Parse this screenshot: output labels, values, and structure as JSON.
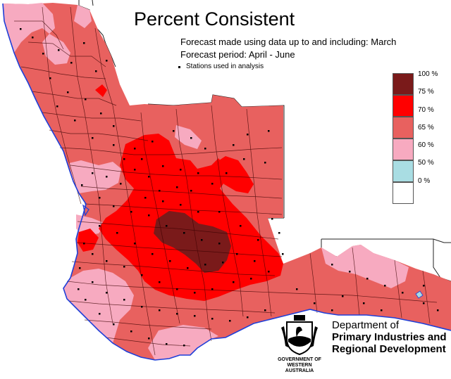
{
  "title": "Percent Consistent",
  "subtitle_made": "Forecast made using data up to and including: March",
  "subtitle_period": "Forecast period: April - June",
  "stations_note": "Stations used in analysis",
  "legend": [
    {
      "label": "100 %",
      "color": "#7a1a1a"
    },
    {
      "label": "75 %",
      "color": "#ff0000"
    },
    {
      "label": "70 %",
      "color": "#e8615f"
    },
    {
      "label": "65 %",
      "color": "#f7aac0"
    },
    {
      "label": "60 %",
      "color": "#a9dde3"
    },
    {
      "label": "50 %",
      "color": "#ffffff"
    },
    {
      "label": "0 %",
      "color": ""
    }
  ],
  "department": {
    "line1": "Department of",
    "line2": "Primary Industries and",
    "line3": "Regional Development",
    "gov_line1": "GOVERNMENT OF",
    "gov_line2": "WESTERN AUSTRALIA"
  },
  "map_colors": {
    "coast": "#1f3fd8",
    "boundary": "#333333",
    "region_border": "#000000",
    "station": "#000000"
  }
}
